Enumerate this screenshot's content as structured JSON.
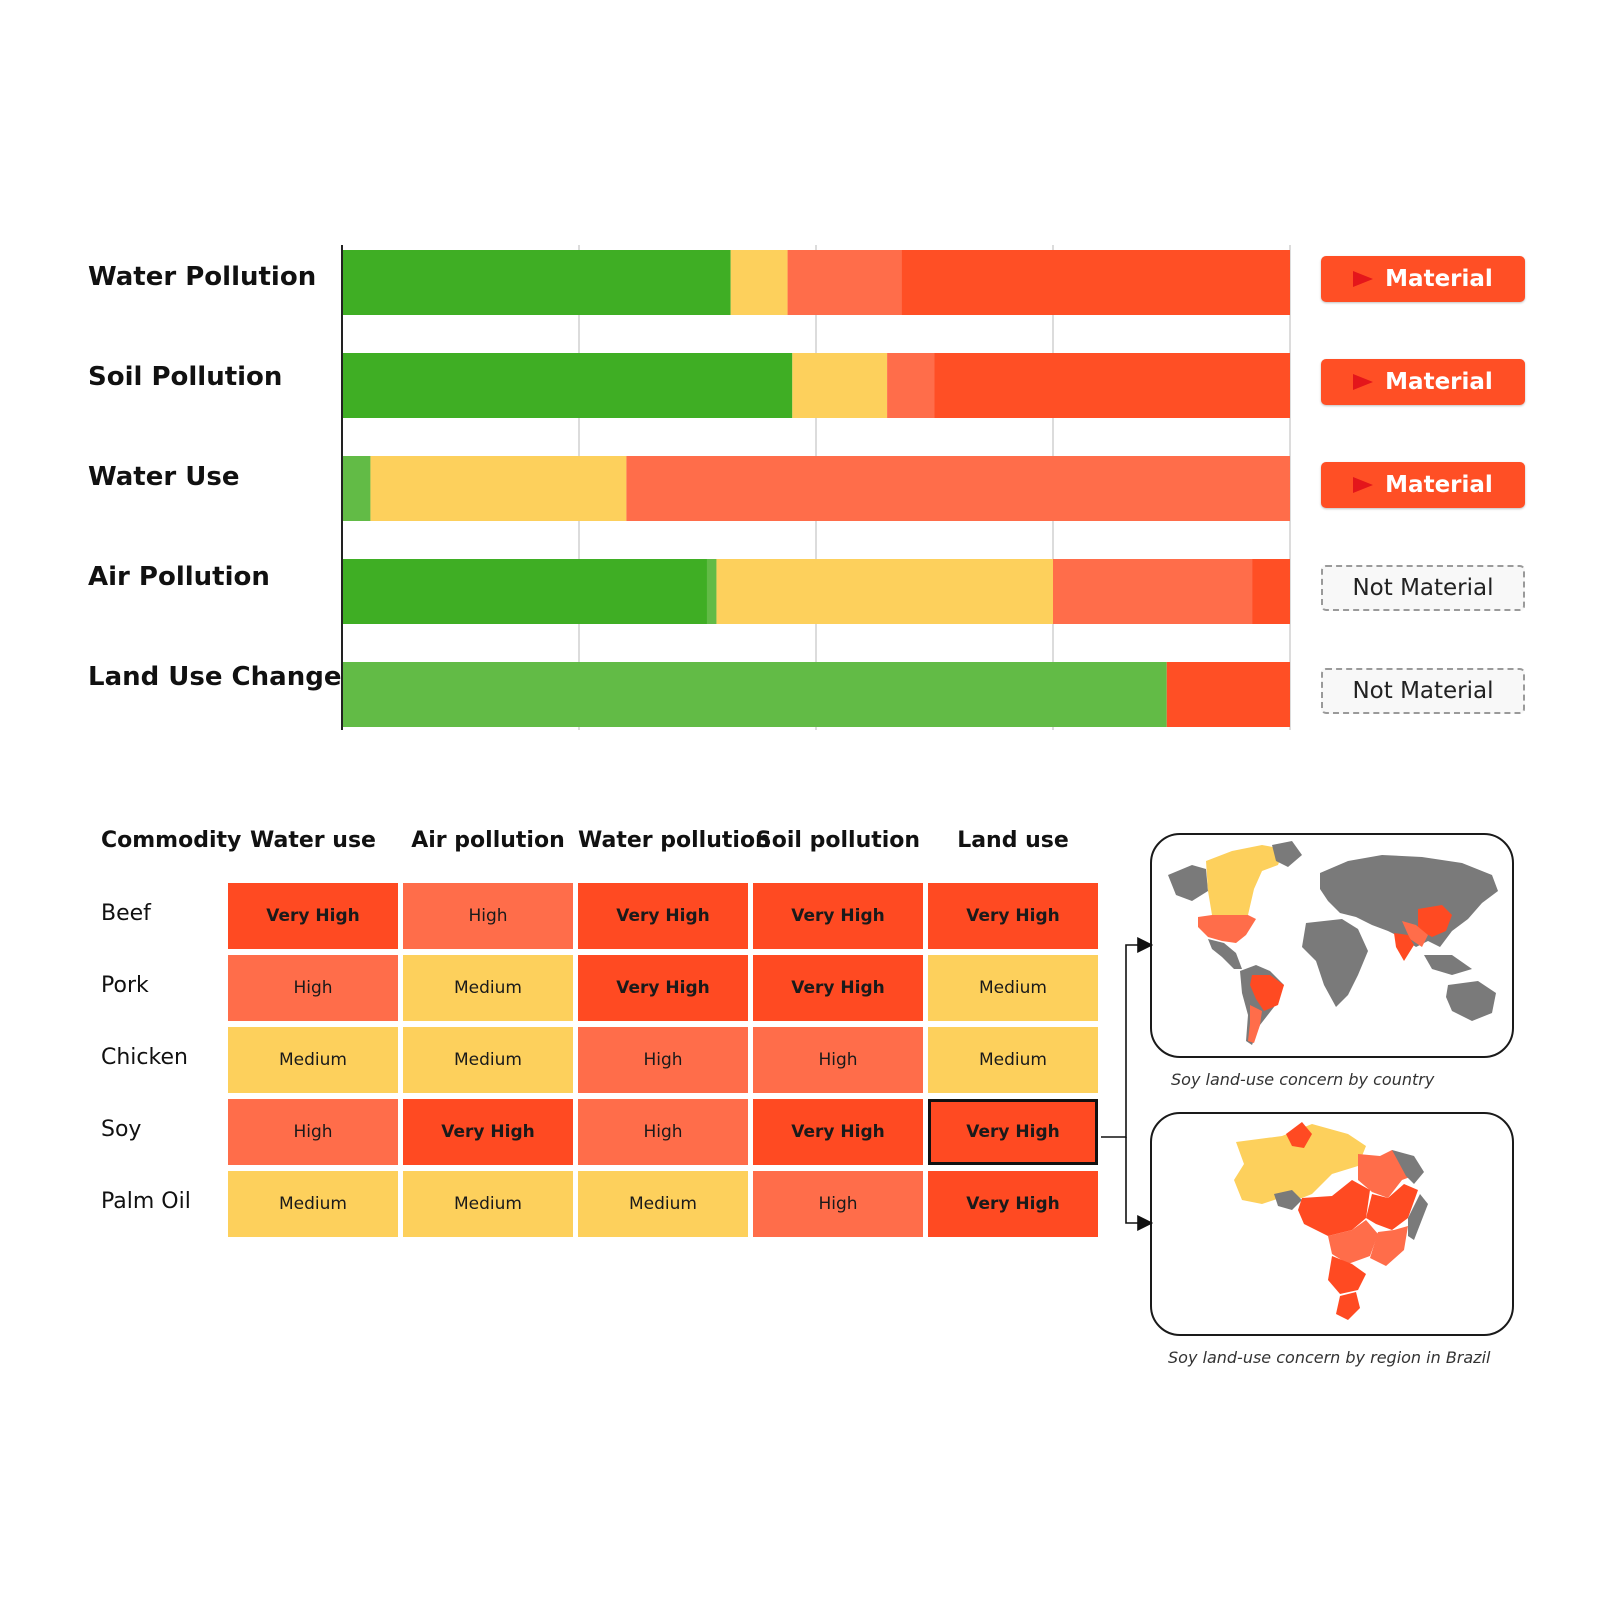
{
  "chart_data": [
    {
      "type": "bar",
      "orientation": "horizontal-stacked",
      "categories": [
        "Water Pollution",
        "Soil Pollution",
        "Water Use",
        "Air Pollution",
        "Land Use Change"
      ],
      "segment_colors": [
        "#3fae24",
        "#62bb46",
        "#fdd05c",
        "#ff6d4a",
        "#ff4f25"
      ],
      "segments": [
        [
          41,
          0,
          6,
          12,
          41
        ],
        [
          47.5,
          0,
          10,
          5,
          37.5
        ],
        [
          0,
          3,
          27,
          70,
          0
        ],
        [
          38.5,
          1,
          35.5,
          21,
          4
        ],
        [
          0,
          87,
          0,
          0,
          13
        ]
      ],
      "xlim": [
        0,
        100
      ],
      "grid": true,
      "materiality": [
        {
          "label": "Material",
          "material": true
        },
        {
          "label": "Material",
          "material": true
        },
        {
          "label": "Material",
          "material": true
        },
        {
          "label": "Not Material",
          "material": false
        },
        {
          "label": "Not Material",
          "material": false
        }
      ]
    },
    {
      "type": "heatmap",
      "corner_header": "Commodity",
      "columns": [
        "Water use",
        "Air pollution",
        "Water pollution",
        "Soil pollution",
        "Land use"
      ],
      "rows": [
        {
          "name": "Beef",
          "values": [
            "Very High",
            "High",
            "Very High",
            "Very High",
            "Very High"
          ]
        },
        {
          "name": "Pork",
          "values": [
            "High",
            "Medium",
            "Very High",
            "Very High",
            "Medium"
          ]
        },
        {
          "name": "Chicken",
          "values": [
            "Medium",
            "Medium",
            "High",
            "High",
            "Medium"
          ]
        },
        {
          "name": "Soy",
          "values": [
            "High",
            "Very High",
            "High",
            "Very High",
            "Very High"
          ]
        },
        {
          "name": "Palm Oil",
          "values": [
            "Medium",
            "Medium",
            "Medium",
            "High",
            "Very High"
          ]
        }
      ],
      "selected_cell": {
        "row": "Soy",
        "column": "Land use"
      },
      "level_colors": {
        "Very High": "#ff4a22",
        "High": "#ff6d4a",
        "Medium": "#fdd05c"
      }
    }
  ],
  "maps": {
    "world_caption": "Soy land-use concern by country",
    "brazil_caption": "Soy land-use concern by region in Brazil",
    "colors": {
      "very_high": "#ff4a22",
      "high": "#ff6d4a",
      "medium": "#fdd05c",
      "no_data": "#7a7a7a"
    }
  }
}
